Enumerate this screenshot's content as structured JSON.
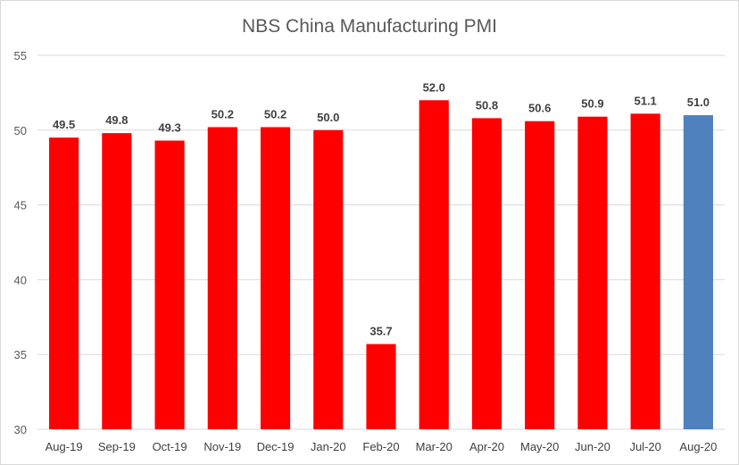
{
  "chart_data": {
    "type": "bar",
    "title": "NBS China Manufacturing PMI",
    "xlabel": "",
    "ylabel": "",
    "ylim": [
      30,
      55
    ],
    "yticks": [
      30,
      35,
      40,
      45,
      50,
      55
    ],
    "grid": true,
    "legend": "none",
    "categories": [
      "Aug-19",
      "Sep-19",
      "Oct-19",
      "Nov-19",
      "Dec-19",
      "Jan-20",
      "Feb-20",
      "Mar-20",
      "Apr-20",
      "May-20",
      "Jun-20",
      "Jul-20",
      "Aug-20"
    ],
    "values": [
      49.5,
      49.8,
      49.3,
      50.2,
      50.2,
      50.0,
      35.7,
      52.0,
      50.8,
      50.6,
      50.9,
      51.1,
      51.0
    ],
    "data_labels": [
      "49.5",
      "49.8",
      "49.3",
      "50.2",
      "50.2",
      "50.0",
      "35.7",
      "52.0",
      "50.8",
      "50.6",
      "50.9",
      "51.1",
      "51.0"
    ],
    "colors": {
      "default_bar": "#ff0000",
      "highlight_bar": "#4f81bd",
      "highlight_categories": [
        "Aug-20"
      ]
    }
  }
}
